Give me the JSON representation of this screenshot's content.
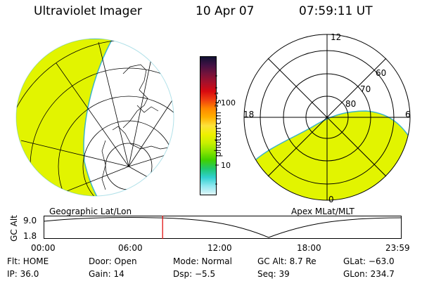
{
  "header": {
    "title": "Ultraviolet Imager",
    "date": "10 Apr 07",
    "time": "07:59:11 UT"
  },
  "geo_panel": {
    "caption": "Geographic Lat/Lon",
    "fill_color": "#e2f400"
  },
  "colorbar": {
    "unit_label": "photon cm⁻²s⁻¹",
    "tick_100": "100",
    "tick_10": "10",
    "colors": [
      "#111133",
      "#441144",
      "#77133a",
      "#a8102a",
      "#d80a10",
      "#f04010",
      "#ff8800",
      "#ffb000",
      "#fde23a",
      "#eef000",
      "#c8f000",
      "#88e400",
      "#40d000",
      "#20c870",
      "#30d0d0",
      "#90e8f0",
      "#e0f4f8"
    ]
  },
  "polar_panel": {
    "caption": "Apex MLat/MLT",
    "mlt_labels": {
      "top": "12",
      "left": "18",
      "right": "6",
      "bottom": "0"
    },
    "lat_labels": [
      "60",
      "70",
      "80"
    ],
    "fill_color": "#e2f400"
  },
  "alt_strip": {
    "y_label": "GC Alt",
    "y_ticks": [
      "9.0",
      "1.8"
    ],
    "x_ticks": [
      "00:00",
      "06:00",
      "12:00",
      "18:00",
      "23:59"
    ],
    "marker_time": "07:59:11",
    "marker_color": "#e00000"
  },
  "info": {
    "row1": {
      "flt": "Flt: HOME",
      "door": "Door: Open",
      "mode": "Mode: Normal",
      "gcalt": "GC Alt: 8.7 Re",
      "glat": "GLat: −63.0"
    },
    "row2": {
      "ip": "IP: 36.0",
      "gain": "Gain: 14",
      "dsp": "Dsp:    −5.5",
      "seq": "Seq: 39",
      "glon": "GLon: 234.7"
    }
  }
}
